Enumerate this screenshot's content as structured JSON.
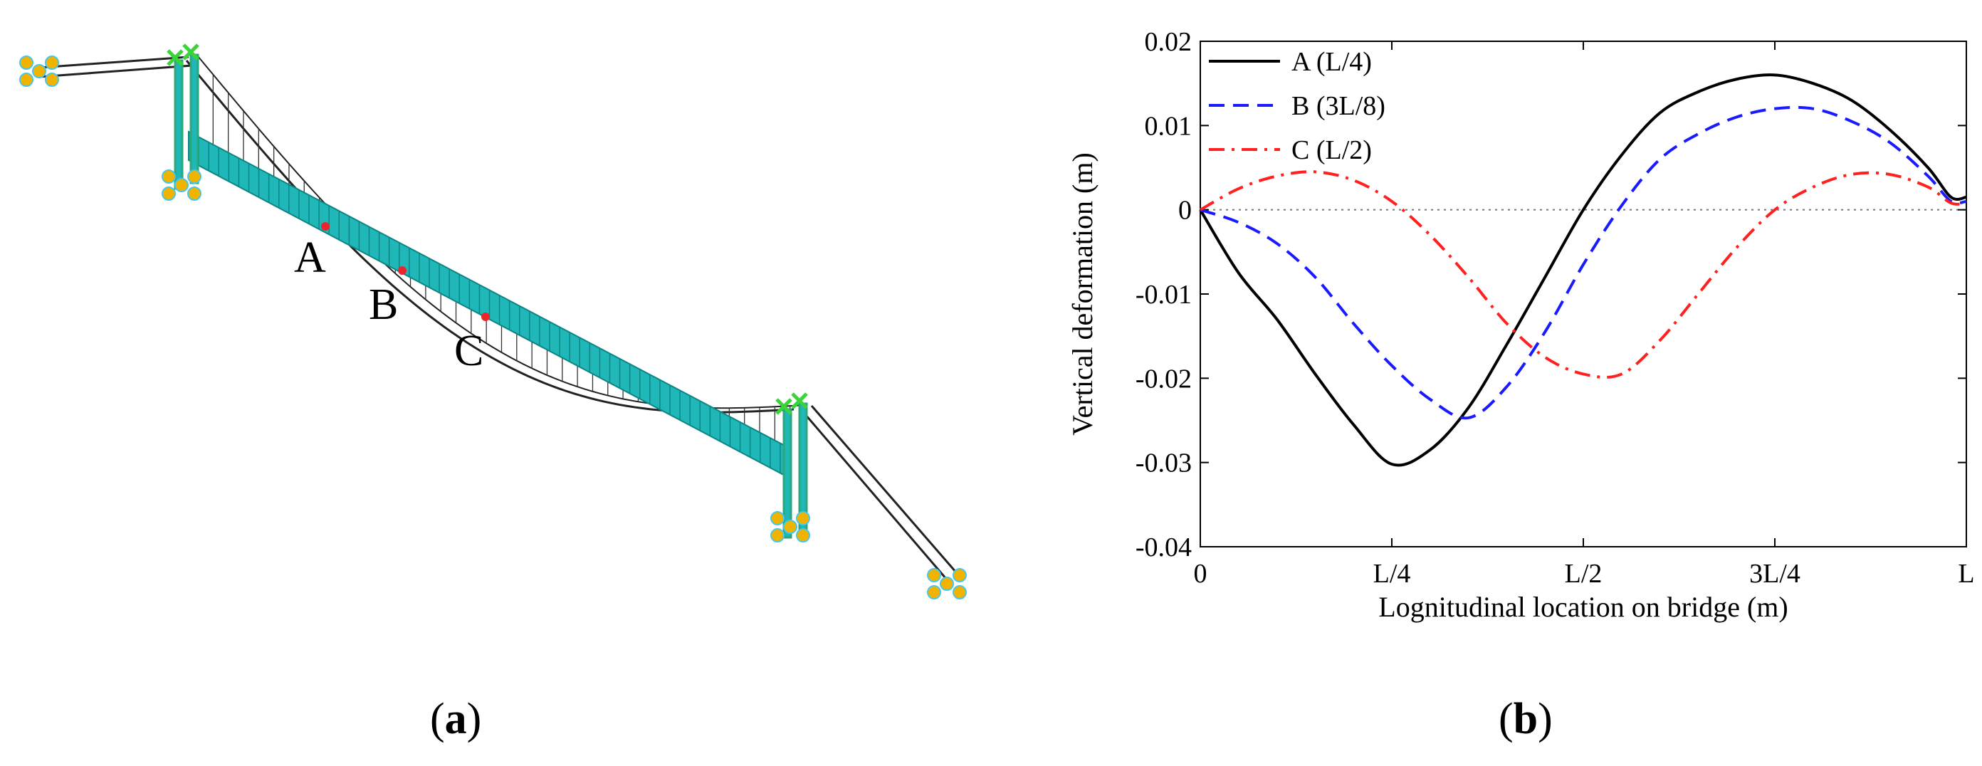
{
  "panels": {
    "a": {
      "label_open": "(",
      "label_letter": "a",
      "label_close": ")"
    },
    "b": {
      "label_open": "(",
      "label_letter": "b",
      "label_close": ")"
    }
  },
  "bridge": {
    "point_labels": [
      "A",
      "B",
      "C"
    ],
    "colors": {
      "deck": "#1fb7b7",
      "deck_dark": "#0d8585",
      "tower": "#2aa87a",
      "cable": "#222222",
      "marker": "#e8262c",
      "anchor": "#f0b400"
    }
  },
  "chart_data": {
    "type": "line",
    "xlabel": "Lognitudinal location on bridge (m)",
    "ylabel": "Vertical deformation (m)",
    "xlim": [
      0,
      1
    ],
    "ylim": [
      -0.04,
      0.02
    ],
    "x_ticks": [
      {
        "value": 0,
        "label": "0"
      },
      {
        "value": 0.25,
        "label": "L/4"
      },
      {
        "value": 0.5,
        "label": "L/2"
      },
      {
        "value": 0.75,
        "label": "3L/4"
      },
      {
        "value": 1,
        "label": "L"
      }
    ],
    "y_ticks": [
      {
        "value": 0.02,
        "label": "0.02"
      },
      {
        "value": 0.01,
        "label": "0.01"
      },
      {
        "value": 0,
        "label": "0"
      },
      {
        "value": -0.01,
        "label": "-0.01"
      },
      {
        "value": -0.02,
        "label": "-0.02"
      },
      {
        "value": -0.03,
        "label": "-0.03"
      },
      {
        "value": -0.04,
        "label": "-0.04"
      }
    ],
    "zero_line": true,
    "grid": false,
    "legend_position": "top-left",
    "series": [
      {
        "name": "A (L/4)",
        "color": "#000000",
        "dash": "solid",
        "x": [
          0,
          0.05,
          0.1,
          0.15,
          0.2,
          0.25,
          0.3,
          0.35,
          0.4,
          0.45,
          0.5,
          0.55,
          0.6,
          0.65,
          0.7,
          0.75,
          0.8,
          0.85,
          0.9,
          0.95,
          0.98,
          1.0
        ],
        "y": [
          0,
          -0.0075,
          -0.013,
          -0.0195,
          -0.0255,
          -0.0302,
          -0.0285,
          -0.0235,
          -0.016,
          -0.008,
          0.0,
          0.0065,
          0.0115,
          0.014,
          0.0155,
          0.016,
          0.015,
          0.013,
          0.0095,
          0.005,
          0.0015,
          0.0015
        ]
      },
      {
        "name": "B (3L/8)",
        "color": "#1a1aff",
        "dash": "dashed",
        "x": [
          0,
          0.05,
          0.1,
          0.15,
          0.2,
          0.25,
          0.3,
          0.35,
          0.4,
          0.45,
          0.5,
          0.55,
          0.6,
          0.65,
          0.7,
          0.75,
          0.8,
          0.85,
          0.9,
          0.95,
          0.98,
          1.0
        ],
        "y": [
          0,
          -0.0015,
          -0.004,
          -0.008,
          -0.0135,
          -0.0185,
          -0.0225,
          -0.0247,
          -0.021,
          -0.0145,
          -0.0065,
          0.0005,
          0.006,
          0.009,
          0.011,
          0.012,
          0.012,
          0.0105,
          0.008,
          0.004,
          0.001,
          0.001
        ]
      },
      {
        "name": "C (L/2)",
        "color": "#ff2020",
        "dash": "dashdot",
        "x": [
          0,
          0.05,
          0.1,
          0.15,
          0.2,
          0.25,
          0.3,
          0.35,
          0.4,
          0.45,
          0.5,
          0.55,
          0.6,
          0.65,
          0.7,
          0.75,
          0.8,
          0.85,
          0.9,
          0.95,
          0.98,
          1.0
        ],
        "y": [
          0,
          0.0025,
          0.004,
          0.0045,
          0.0035,
          0.001,
          -0.003,
          -0.008,
          -0.0135,
          -0.0175,
          -0.0195,
          -0.0195,
          -0.0155,
          -0.01,
          -0.0045,
          0.0,
          0.0027,
          0.0042,
          0.0042,
          0.0027,
          0.0008,
          0.0008
        ]
      }
    ]
  }
}
